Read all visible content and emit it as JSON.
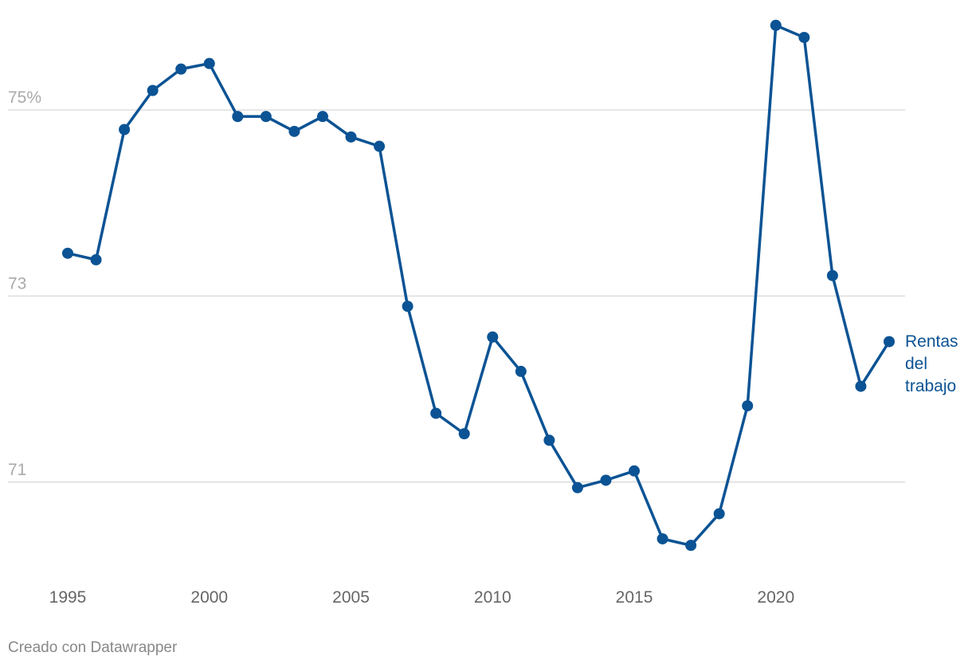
{
  "chart_data": {
    "type": "line",
    "x": [
      1995,
      1996,
      1997,
      1998,
      1999,
      2000,
      2001,
      2002,
      2003,
      2004,
      2005,
      2006,
      2007,
      2008,
      2009,
      2010,
      2011,
      2012,
      2013,
      2014,
      2015,
      2016,
      2017,
      2018,
      2019,
      2020,
      2021,
      2022,
      2023,
      2024
    ],
    "series": [
      {
        "name": "Rentas del trabajo",
        "color": "#0b5394",
        "values": [
          73.46,
          73.39,
          74.79,
          75.21,
          75.44,
          75.5,
          74.93,
          74.93,
          74.77,
          74.93,
          74.71,
          74.61,
          72.89,
          71.74,
          71.52,
          72.56,
          72.19,
          71.45,
          70.94,
          71.02,
          71.12,
          70.39,
          70.32,
          70.66,
          71.82,
          75.91,
          75.78,
          73.22,
          72.03,
          72.51
        ]
      }
    ],
    "xlim": [
      1995,
      2024
    ],
    "xticks": [
      1995,
      2000,
      2005,
      2010,
      2015,
      2020
    ],
    "ylim": [
      70.2,
      76.0
    ],
    "yticks": [
      {
        "value": 75,
        "label": "75%"
      },
      73,
      71
    ],
    "grid": true,
    "footer": "Creado con Datawrapper"
  }
}
